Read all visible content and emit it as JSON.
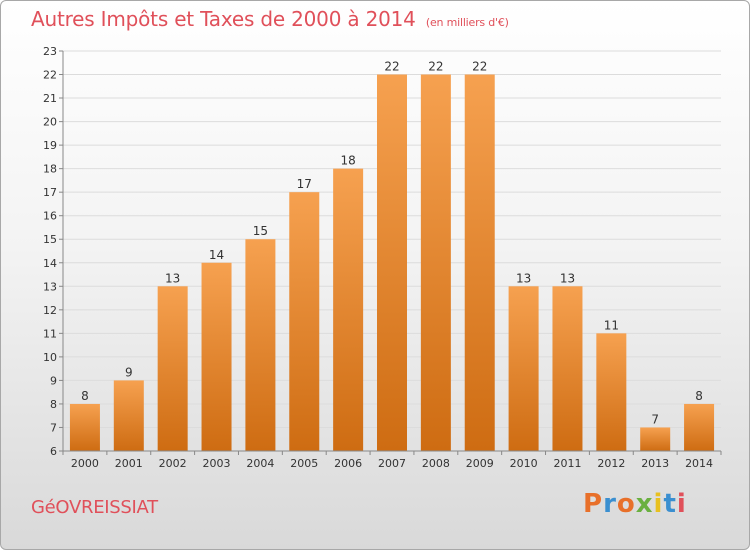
{
  "header": {
    "title": "Autres Impôts et Taxes de 2000 à 2014",
    "subtitle": "(en milliers d'€)"
  },
  "footer": {
    "town": "GéOVREISSIAT",
    "brand": "Proxiti",
    "brand_colors": [
      "#e8702a",
      "#3a8fd0",
      "#e8702a",
      "#6ab040",
      "#e8c020",
      "#3a8fd0",
      "#e0505a"
    ]
  },
  "colors": {
    "bar_top": "#f6a150",
    "bar_bottom": "#ce6c12",
    "grid": "#dcdcdc",
    "axis": "#888888",
    "label": "#333333"
  },
  "chart_data": {
    "type": "bar",
    "title": "Autres Impôts et Taxes de 2000 à 2014",
    "subtitle": "(en milliers d'€)",
    "categories": [
      "2000",
      "2001",
      "2002",
      "2003",
      "2004",
      "2005",
      "2006",
      "2007",
      "2008",
      "2009",
      "2010",
      "2011",
      "2012",
      "2013",
      "2014"
    ],
    "values": [
      8,
      9,
      13,
      14,
      15,
      17,
      18,
      22,
      22,
      22,
      13,
      13,
      11,
      7,
      8
    ],
    "xlabel": "",
    "ylabel": "",
    "ylim": [
      6,
      23
    ],
    "yticks": [
      6,
      7,
      8,
      9,
      10,
      11,
      12,
      13,
      14,
      15,
      16,
      17,
      18,
      19,
      20,
      21,
      22,
      23
    ],
    "grid": true,
    "data_labels": true
  }
}
